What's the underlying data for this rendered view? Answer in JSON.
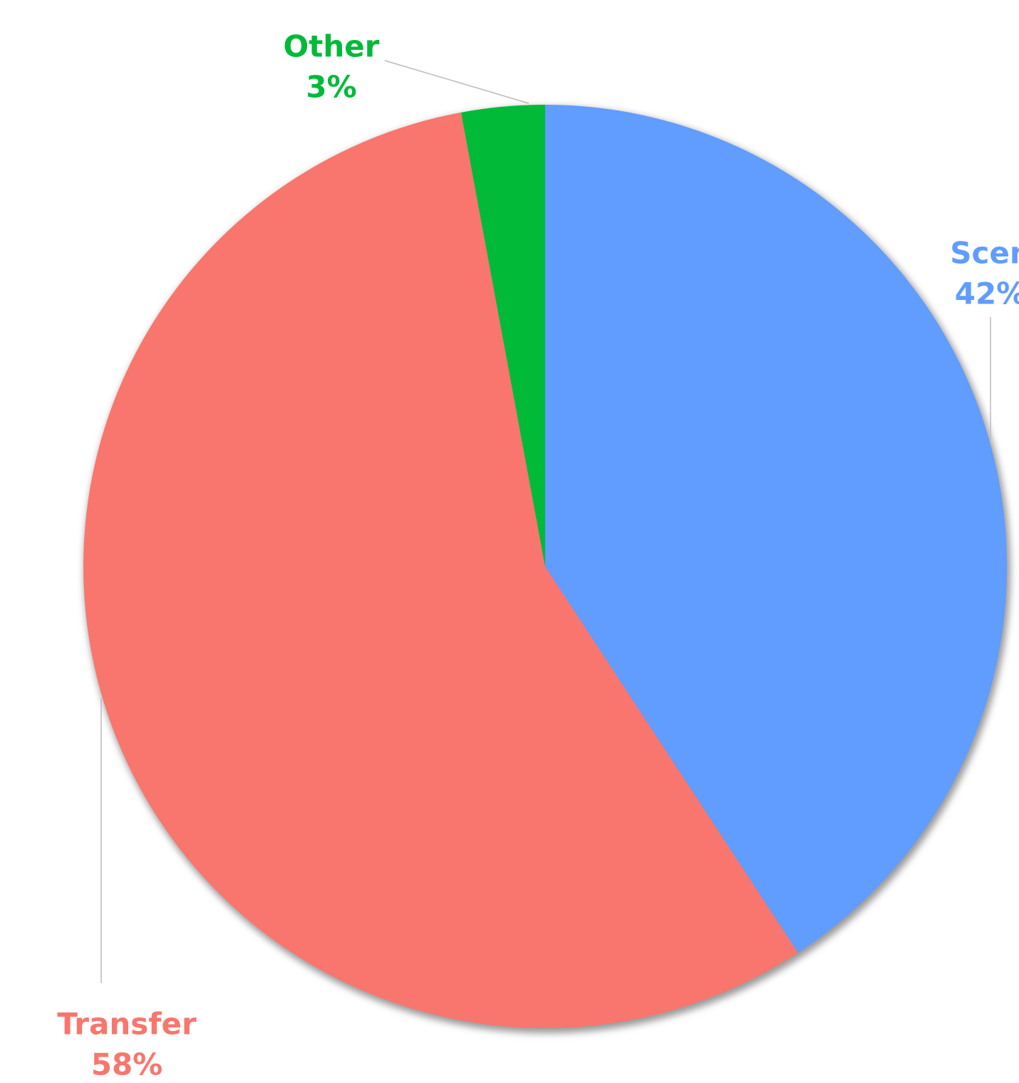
{
  "chart_data": {
    "type": "pie",
    "categories": [
      "Scen",
      "Transfer",
      "Other"
    ],
    "values": [
      42,
      58,
      3
    ],
    "value_labels": [
      "42%",
      "58%",
      "3%"
    ],
    "colors": [
      "#619cff",
      "#f8766d",
      "#00ba38"
    ]
  }
}
